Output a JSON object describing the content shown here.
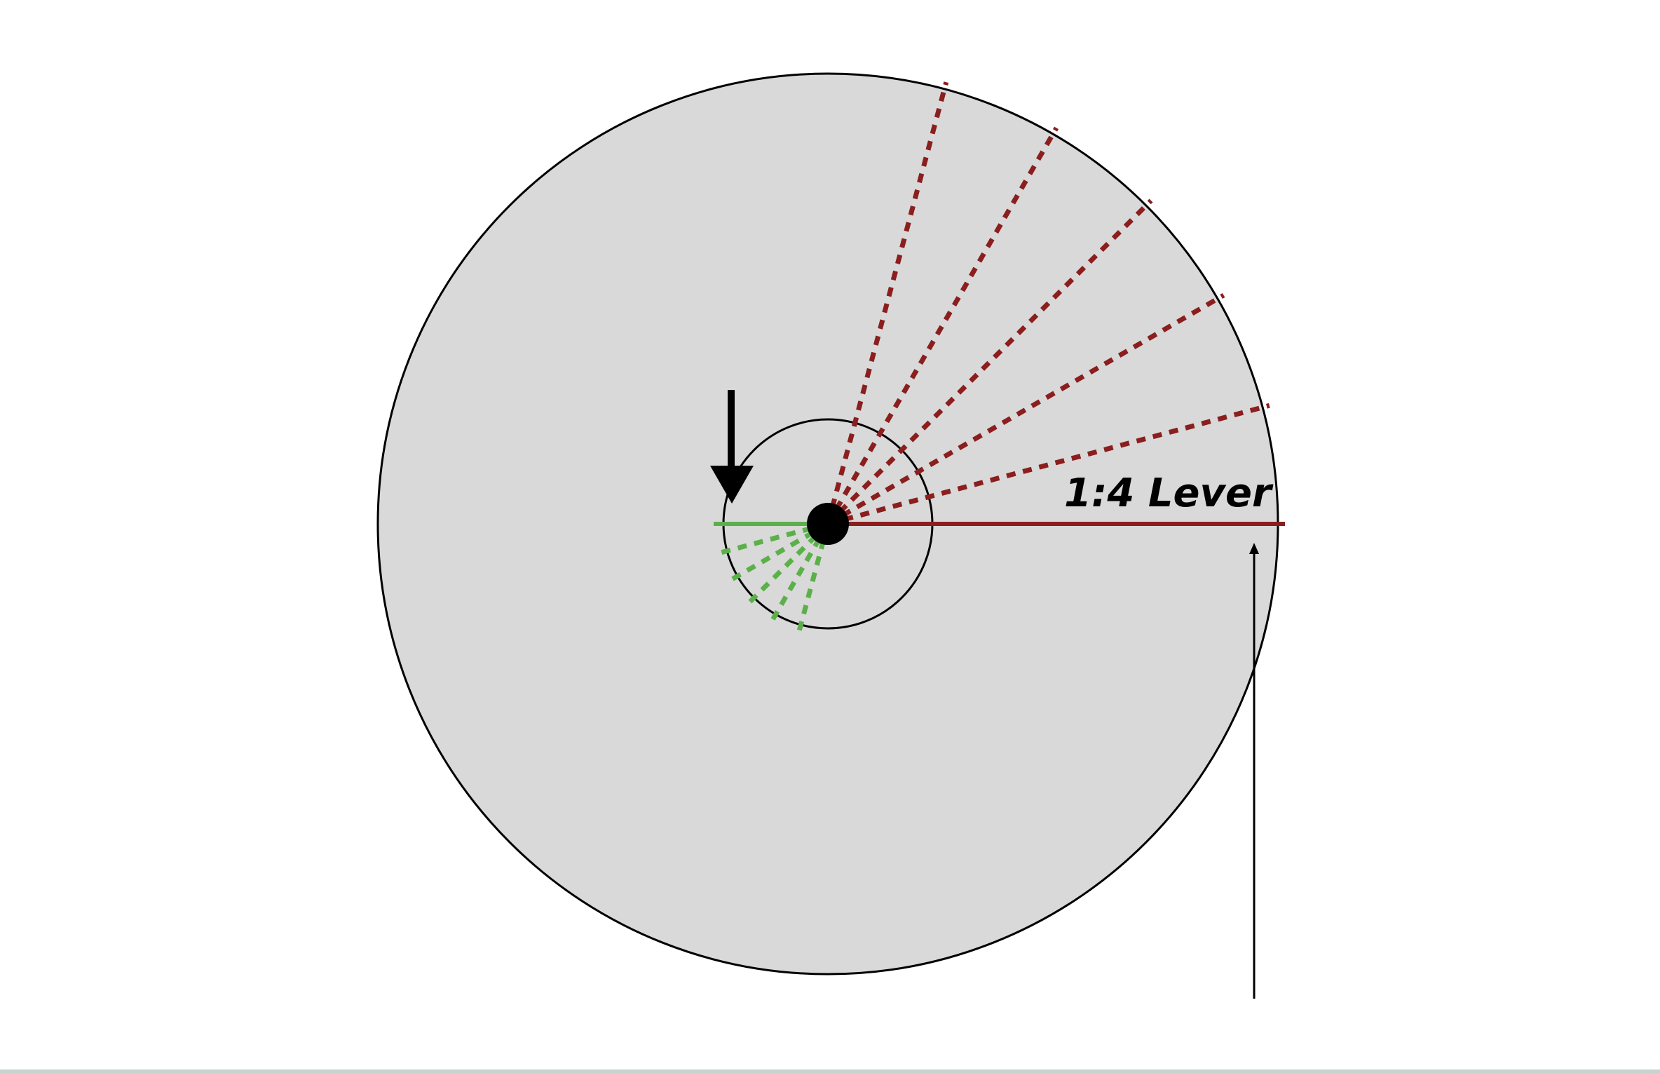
{
  "diagram": {
    "label": "1:4 Lever",
    "ratio": {
      "effort_arm": 1,
      "load_arm": 4
    },
    "colors": {
      "background": "#ffffff",
      "large_wheel_fill": "#d9d9d9",
      "outline": "#000000",
      "long_arm": "#8b1e1e",
      "short_arm": "#5cb04a",
      "bottom_strip": "#c7d3cf"
    },
    "long_arm_sweep_degrees": [
      0,
      15,
      30,
      45,
      60,
      75
    ],
    "short_arm_sweep_degrees": [
      180,
      195,
      210,
      225,
      240,
      255
    ]
  }
}
